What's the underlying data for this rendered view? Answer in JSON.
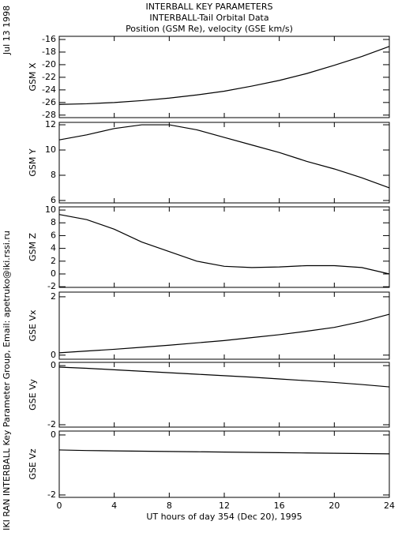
{
  "header": {
    "title": "INTERBALL KEY PARAMETERS",
    "subtitle": "INTERBALL-Tail Orbital Data",
    "description": "Position (GSM Re), velocity (GSE km/s)",
    "date": "Jul 13 1998",
    "credit": "IKI RAN INTERBALL Key Parameter Group, Email: apetruko@iki.rssi.ru",
    "xlabel": "UT hours of day 354 (Dec 20), 1995"
  },
  "chart_data": [
    {
      "type": "line",
      "ylabel": "GSM X",
      "x": [
        0,
        2,
        4,
        6,
        8,
        10,
        12,
        14,
        16,
        18,
        20,
        22,
        24
      ],
      "values": [
        -26.3,
        -26.2,
        -26.0,
        -25.7,
        -25.3,
        -24.8,
        -24.2,
        -23.4,
        -22.5,
        -21.4,
        -20.1,
        -18.7,
        -17.1
      ],
      "color": "#000000",
      "xlim": [
        0,
        24
      ],
      "xticks": [
        0,
        4,
        8,
        12,
        16,
        20,
        24
      ],
      "ylim": [
        -28.4,
        -15.5
      ],
      "yticks": [
        -28,
        -26,
        -24,
        -22,
        -20,
        -18,
        -16
      ]
    },
    {
      "type": "line",
      "ylabel": "GSM Y",
      "x": [
        0,
        2,
        4,
        6,
        8,
        10,
        12,
        14,
        16,
        18,
        20,
        22,
        24
      ],
      "values": [
        10.8,
        11.2,
        11.7,
        12.0,
        12.0,
        11.6,
        11.0,
        10.4,
        9.8,
        9.1,
        8.5,
        7.8,
        7.0
      ],
      "color": "#000000",
      "xlim": [
        0,
        24
      ],
      "xticks": [
        0,
        4,
        8,
        12,
        16,
        20,
        24
      ],
      "ylim": [
        5.81,
        12.19
      ],
      "yticks": [
        6,
        8,
        10,
        12
      ]
    },
    {
      "type": "line",
      "ylabel": "GSM Z",
      "x": [
        0,
        2,
        4,
        6,
        8,
        10,
        12,
        14,
        16,
        18,
        20,
        22,
        24
      ],
      "values": [
        9.3,
        8.5,
        7.0,
        5.0,
        3.5,
        2.0,
        1.2,
        1.0,
        1.1,
        1.3,
        1.3,
        1.0,
        0.0
      ],
      "color": "#000000",
      "xlim": [
        0,
        24
      ],
      "xticks": [
        0,
        4,
        8,
        12,
        16,
        20,
        24
      ],
      "ylim": [
        -2.1,
        10.5
      ],
      "yticks": [
        -2,
        0,
        2,
        4,
        6,
        8,
        10
      ]
    },
    {
      "type": "line",
      "ylabel": "GSE Vx",
      "x": [
        0,
        2,
        4,
        6,
        8,
        10,
        12,
        14,
        16,
        18,
        20,
        22,
        24
      ],
      "values": [
        0.08,
        0.14,
        0.2,
        0.27,
        0.34,
        0.42,
        0.5,
        0.6,
        0.7,
        0.82,
        0.95,
        1.15,
        1.4
      ],
      "color": "#000000",
      "xlim": [
        0,
        24
      ],
      "xticks": [
        0,
        4,
        8,
        12,
        16,
        20,
        24
      ],
      "ylim": [
        -0.14,
        2.16
      ],
      "yticks": [
        0,
        2
      ]
    },
    {
      "type": "line",
      "ylabel": "GSE Vy",
      "x": [
        0,
        2,
        4,
        6,
        8,
        10,
        12,
        14,
        16,
        18,
        20,
        22,
        24
      ],
      "values": [
        -0.05,
        -0.09,
        -0.14,
        -0.19,
        -0.24,
        -0.29,
        -0.34,
        -0.39,
        -0.45,
        -0.51,
        -0.57,
        -0.64,
        -0.72
      ],
      "color": "#000000",
      "xlim": [
        0,
        24
      ],
      "xticks": [
        0,
        4,
        8,
        12,
        16,
        20,
        24
      ],
      "ylim": [
        -2.08,
        0.11
      ],
      "yticks": [
        -2,
        0
      ]
    },
    {
      "type": "line",
      "ylabel": "GSE Vz",
      "x": [
        0,
        2,
        4,
        6,
        8,
        10,
        12,
        14,
        16,
        18,
        20,
        22,
        24
      ],
      "values": [
        -0.5,
        -0.52,
        -0.53,
        -0.54,
        -0.55,
        -0.56,
        -0.57,
        -0.58,
        -0.59,
        -0.6,
        -0.61,
        -0.62,
        -0.63
      ],
      "color": "#000000",
      "xlim": [
        0,
        24
      ],
      "xticks": [
        0,
        4,
        8,
        12,
        16,
        20,
        24
      ],
      "ylim": [
        -2.08,
        0.13
      ],
      "yticks": [
        -2,
        0
      ]
    }
  ]
}
